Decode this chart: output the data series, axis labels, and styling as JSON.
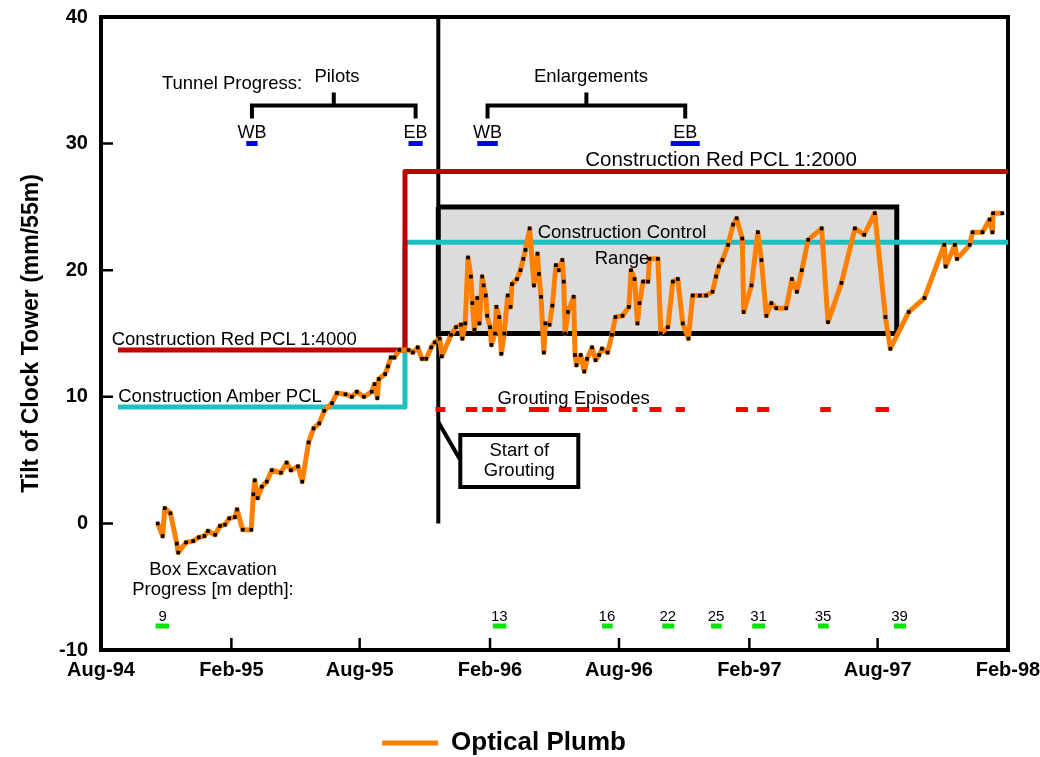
{
  "chart_data": {
    "type": "line",
    "ylabel": "Tilt of Clock Tower (mm/55m)",
    "xlim": [
      "1994-08-01",
      "1998-02-01"
    ],
    "xticks": [
      {
        "value": "1994-08-01",
        "label": "Aug-94"
      },
      {
        "value": "1995-02-01",
        "label": "Feb-95"
      },
      {
        "value": "1995-08-01",
        "label": "Aug-95"
      },
      {
        "value": "1996-02-01",
        "label": "Feb-96"
      },
      {
        "value": "1996-08-01",
        "label": "Aug-96"
      },
      {
        "value": "1997-02-01",
        "label": "Feb-97"
      },
      {
        "value": "1997-08-01",
        "label": "Aug-97"
      },
      {
        "value": "1998-02-01",
        "label": "Feb-98"
      }
    ],
    "ylim": [
      -10,
      40
    ],
    "yticks": [
      -10,
      0,
      10,
      20,
      30,
      40
    ],
    "grid": false,
    "legend": "bottom",
    "series": [
      {
        "name": "Optical Plumb",
        "color": "#ff8000",
        "marker": "square",
        "x": [
          "1994-10-20",
          "1994-10-27",
          "1994-10-30",
          "1994-11-07",
          "1994-11-16",
          "1994-11-18",
          "1994-11-29",
          "1994-12-09",
          "1994-12-17",
          "1994-12-25",
          "1994-12-30",
          "1995-01-09",
          "1995-01-16",
          "1995-01-23",
          "1995-01-29",
          "1995-02-06",
          "1995-02-09",
          "1995-02-17",
          "1995-03-01",
          "1995-03-04",
          "1995-03-06",
          "1995-03-10",
          "1995-03-16",
          "1995-03-23",
          "1995-03-30",
          "1995-04-12",
          "1995-04-20",
          "1995-04-26",
          "1995-05-06",
          "1995-05-12",
          "1995-05-21",
          "1995-05-28",
          "1995-06-05",
          "1995-06-12",
          "1995-06-23",
          "1995-06-30",
          "1995-07-12",
          "1995-07-21",
          "1995-07-28",
          "1995-08-07",
          "1995-08-18",
          "1995-08-22",
          "1995-08-26",
          "1995-08-28",
          "1995-09-06",
          "1995-09-10",
          "1995-09-14",
          "1995-09-19",
          "1995-09-26",
          "1995-10-09",
          "1995-10-15",
          "1995-10-22",
          "1995-10-28",
          "1995-11-03",
          "1995-11-10",
          "1995-11-15",
          "1995-11-22",
          "1995-11-25",
          "1995-12-08",
          "1995-12-15",
          "1995-12-22",
          "1995-12-24",
          "1995-12-28",
          "1996-01-01",
          "1996-01-05",
          "1996-01-07",
          "1996-01-10",
          "1996-01-14",
          "1996-01-17",
          "1996-01-21",
          "1996-01-23",
          "1996-01-26",
          "1996-01-28",
          "1996-02-01",
          "1996-02-03",
          "1996-02-08",
          "1996-02-10",
          "1996-02-14",
          "1996-02-17",
          "1996-02-21",
          "1996-02-26",
          "1996-03-01",
          "1996-03-03",
          "1996-03-10",
          "1996-03-15",
          "1996-03-19",
          "1996-03-22",
          "1996-03-28",
          "1996-04-03",
          "1996-04-08",
          "1996-04-10",
          "1996-04-13",
          "1996-04-17",
          "1996-04-19",
          "1996-04-25",
          "1996-04-29",
          "1996-05-04",
          "1996-05-08",
          "1996-05-13",
          "1996-05-15",
          "1996-05-17",
          "1996-05-21",
          "1996-05-29",
          "1996-05-31",
          "1996-06-02",
          "1996-06-08",
          "1996-06-13",
          "1996-06-17",
          "1996-06-24",
          "1996-06-29",
          "1996-07-04",
          "1996-07-08",
          "1996-07-16",
          "1996-07-22",
          "1996-07-27",
          "1996-08-06",
          "1996-08-15",
          "1996-08-18",
          "1996-08-23",
          "1996-08-27",
          "1996-08-30",
          "1996-09-04",
          "1996-09-11",
          "1996-09-13",
          "1996-09-25",
          "1996-09-29",
          "1996-10-09",
          "1996-10-16",
          "1996-10-23",
          "1996-10-30",
          "1996-11-07",
          "1996-11-13",
          "1996-11-23",
          "1996-12-02",
          "1996-12-11",
          "1996-12-16",
          "1996-12-20",
          "1996-12-25",
          "1997-01-02",
          "1997-01-09",
          "1997-01-14",
          "1997-01-22",
          "1997-01-24",
          "1997-02-04",
          "1997-02-13",
          "1997-02-18",
          "1997-02-25",
          "1997-03-04",
          "1997-03-11",
          "1997-03-25",
          "1997-04-02",
          "1997-04-09",
          "1997-04-16",
          "1997-04-25",
          "1997-05-14",
          "1997-05-23",
          "1997-06-11",
          "1997-06-30",
          "1997-07-13",
          "1997-07-28",
          "1997-08-12",
          "1997-08-19",
          "1997-09-14",
          "1997-10-06",
          "1997-11-03",
          "1997-11-05",
          "1997-11-18",
          "1997-11-21",
          "1997-12-09",
          "1997-12-13",
          "1997-12-27",
          "1998-01-06",
          "1998-01-10",
          "1998-01-11",
          "1998-01-24"
        ],
        "values": [
          0.0,
          -1.0,
          1.2,
          0.8,
          -1.6,
          -2.3,
          -1.5,
          -1.4,
          -1.1,
          -1.0,
          -0.6,
          -0.9,
          -0.2,
          -0.1,
          0.4,
          0.5,
          1.1,
          -0.5,
          -0.5,
          2.3,
          3.4,
          2.0,
          2.9,
          3.3,
          4.2,
          4.0,
          4.8,
          4.2,
          4.5,
          3.3,
          6.4,
          7.5,
          7.9,
          8.9,
          9.5,
          10.3,
          10.2,
          10.0,
          10.4,
          10.0,
          10.4,
          11.0,
          9.9,
          11.4,
          11.8,
          12.4,
          13.1,
          13.1,
          13.7,
          13.7,
          13.5,
          13.9,
          13.0,
          13.0,
          13.9,
          14.3,
          14.6,
          13.2,
          14.9,
          15.5,
          15.7,
          14.6,
          15.8,
          21.0,
          19.5,
          17.4,
          15.3,
          17.8,
          15.8,
          19.5,
          18.8,
          18.0,
          16.4,
          15.5,
          14.1,
          15.0,
          17.1,
          16.3,
          13.4,
          15.0,
          18.0,
          17.1,
          18.9,
          19.3,
          20.0,
          20.9,
          21.6,
          23.3,
          18.8,
          21.3,
          19.7,
          17.9,
          13.5,
          15.8,
          15.7,
          17.2,
          20.4,
          20.0,
          20.8,
          19.1,
          15.0,
          16.7,
          17.9,
          13.3,
          12.5,
          13.3,
          12.0,
          13.0,
          13.9,
          12.9,
          13.3,
          13.8,
          13.5,
          14.9,
          16.3,
          16.4,
          17.1,
          20.0,
          19.3,
          15.8,
          17.4,
          19.1,
          19.1,
          20.9,
          20.9,
          15.0,
          15.5,
          19.1,
          19.3,
          15.8,
          14.6,
          18.0,
          18.0,
          18.0,
          18.3,
          19.5,
          20.3,
          20.8,
          22.0,
          23.6,
          24.1,
          22.5,
          16.7,
          18.8,
          23.0,
          20.8,
          16.4,
          17.4,
          17.0,
          17.0,
          19.3,
          18.3,
          20.0,
          22.4,
          23.3,
          15.9,
          19.0,
          23.3,
          22.8,
          24.5,
          16.3,
          13.8,
          16.7,
          17.8,
          22.0,
          20.3,
          22.0,
          20.9,
          22.0,
          23.0,
          23.0,
          24.0,
          23.0,
          24.5,
          24.5
        ]
      },
      {
        "type": "step",
        "color": "#c00000",
        "x": [
          "1994-08-25",
          "1995-10-04",
          "1998-02-01"
        ],
        "values": [
          13.7,
          27.8,
          27.8
        ]
      },
      {
        "type": "step",
        "color": "#1fbfbf",
        "x": [
          "1994-08-25",
          "1995-10-04",
          "1998-02-01"
        ],
        "values": [
          9.2,
          22.2,
          22.2
        ]
      },
      {
        "type": "area",
        "color": "#dcdcdc",
        "x": [
          "1995-11-20",
          "1997-08-28",
          "1997-08-28",
          "1995-11-20",
          "1995-11-20"
        ],
        "values": [
          25.0,
          25.0,
          15.0,
          15.0,
          25.0
        ]
      },
      {
        "type": "line",
        "color": "#0000ff",
        "x": [
          "1995-02-22",
          "1995-03-10",
          null,
          "1995-10-09",
          "1995-10-29",
          null,
          "1996-01-14",
          "1996-02-12",
          null,
          "1996-10-13",
          "1996-11-23"
        ],
        "values": [
          30,
          30,
          null,
          30,
          30,
          null,
          30,
          30,
          null,
          30,
          30
        ],
        "value_labels": [
          "WB",
          null,
          null,
          "EB",
          null,
          null,
          "WB",
          null,
          null,
          "EB",
          null
        ]
      },
      {
        "type": "line",
        "color": "#ff0000",
        "x": [
          "1995-11-16",
          "1995-11-30",
          null,
          "1995-12-29",
          "1996-01-14",
          null,
          "1996-01-21",
          "1996-02-05",
          null,
          "1996-02-10",
          "1996-02-23",
          null,
          "1996-03-27",
          "1996-04-24",
          null,
          "1996-05-08",
          "1996-05-26",
          null,
          "1996-06-02",
          "1996-06-20",
          null,
          "1996-06-24",
          "1996-07-15",
          null,
          "1996-08-20",
          "1996-08-27",
          null,
          "1996-09-13",
          "1996-09-30",
          null,
          "1996-10-20",
          "1996-11-02",
          null,
          "1997-01-13",
          "1997-01-30",
          null,
          "1997-02-12",
          "1997-03-01",
          null,
          "1997-05-12",
          "1997-05-27",
          null,
          "1997-07-29",
          "1997-08-17"
        ],
        "values": [
          9,
          9,
          null,
          9,
          9,
          null,
          9,
          9,
          null,
          9,
          9,
          null,
          9,
          9,
          null,
          9,
          9,
          null,
          9,
          9,
          null,
          9,
          9,
          null,
          9,
          9,
          null,
          9,
          9,
          null,
          9,
          9,
          null,
          9,
          9,
          null,
          9,
          9,
          null,
          9,
          9,
          null,
          9,
          9
        ]
      },
      {
        "type": "line",
        "color": "#00e600",
        "x": [
          "1994-10-17",
          "1994-11-05",
          null,
          "1996-02-05",
          "1996-02-24",
          null,
          "1996-07-08",
          "1996-07-23",
          null,
          "1996-10-01",
          "1996-10-18",
          null,
          "1996-12-09",
          "1996-12-24",
          null,
          "1997-02-05",
          "1997-02-23",
          null,
          "1997-05-09",
          "1997-05-24",
          null,
          "1997-08-24",
          "1997-09-10"
        ],
        "values": [
          -8.1,
          -8.1,
          null,
          -8.1,
          -8.1,
          null,
          -8.1,
          -8.1,
          null,
          -8.1,
          -8.1,
          null,
          -8.1,
          -8.1,
          null,
          -8.1,
          -8.1,
          null,
          -8.1,
          -8.1,
          null,
          -8.1,
          -8.1
        ]
      }
    ],
    "ref_lines": [
      {
        "axis": "x",
        "value": "1995-11-20",
        "label": "Start of Grouting",
        "color": "#000000"
      }
    ],
    "annotations": [
      "Tunnel Progress:",
      "Pilots",
      "Enlargements",
      {
        "text": "Construction Red PCL 1:2000",
        "x": "1996-12-23",
        "y": 27.8
      },
      "Construction Control Range",
      {
        "text": "Construction Red PCL 1:4000",
        "x": "1995-02-05",
        "y": 13.7
      },
      {
        "text": "Construction Amber PCL",
        "x": "1995-01-16",
        "y": 9.2
      },
      {
        "text": "Grouting Episodes",
        "x": "1996-05-29",
        "y": 9
      },
      "Box Excavation Progress [m depth]:",
      {
        "text": "9",
        "x": "1994-10-27",
        "y": -8.1
      },
      {
        "text": "13",
        "x": "1996-02-14",
        "y": -8.1
      },
      {
        "text": "16",
        "x": "1996-07-15",
        "y": -8.1
      },
      {
        "text": "22",
        "x": "1996-10-09",
        "y": -8.1
      },
      {
        "text": "25",
        "x": "1996-12-16",
        "y": -8.1
      },
      {
        "text": "31",
        "x": "1997-02-14",
        "y": -8.1
      },
      {
        "text": "35",
        "x": "1997-05-16",
        "y": -8.1
      },
      {
        "text": "39",
        "x": "1997-09-01",
        "y": -8.1
      }
    ]
  }
}
